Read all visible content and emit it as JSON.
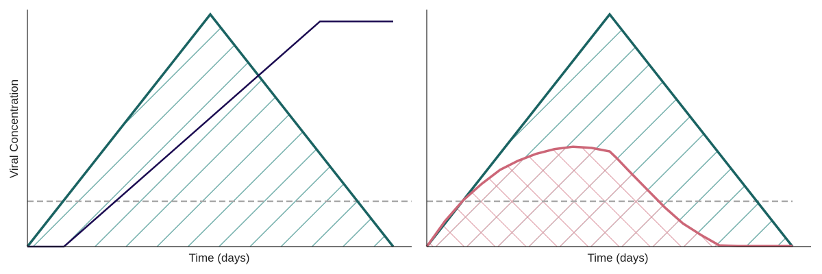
{
  "colors": {
    "triangle": "#1a6362",
    "triangle_hatch": "#6aaaa6",
    "line": "#1a0a50",
    "curve": "#cc6677",
    "curve_hatch": "#dc95a0",
    "threshold": "#aaaaaa",
    "axis": "#222222"
  },
  "chart_data": [
    {
      "type": "line",
      "xlabel": "Time (days)",
      "ylabel": "Viral Concentration",
      "xlim": [
        0,
        1
      ],
      "ylim": [
        0,
        1
      ],
      "grid": false,
      "ticks": false,
      "series": [
        {
          "role": "triangle",
          "hatched": true,
          "x": [
            0,
            0.5,
            1.0
          ],
          "y": [
            0,
            1.0,
            0
          ]
        },
        {
          "role": "line",
          "x": [
            0,
            0.1,
            0.8,
            1.0
          ],
          "y": [
            0,
            0,
            0.97,
            0.97
          ]
        },
        {
          "role": "threshold",
          "dashed": true,
          "x": [
            0,
            1.05
          ],
          "y": [
            0.195,
            0.195
          ]
        }
      ]
    },
    {
      "type": "line",
      "xlabel": "Time (days)",
      "ylabel": "",
      "xlim": [
        0,
        1
      ],
      "ylim": [
        0,
        1
      ],
      "grid": false,
      "ticks": false,
      "series": [
        {
          "role": "triangle",
          "hatched": true,
          "x": [
            0,
            0.5,
            1.0
          ],
          "y": [
            0,
            1.0,
            0
          ]
        },
        {
          "role": "curve",
          "hatched": true,
          "x": [
            0,
            0.05,
            0.1,
            0.15,
            0.2,
            0.25,
            0.3,
            0.35,
            0.4,
            0.45,
            0.5,
            0.52,
            0.55,
            0.6,
            0.65,
            0.7,
            0.75,
            0.8,
            0.85,
            0.9,
            0.95,
            1.0
          ],
          "y": [
            0,
            0.11,
            0.2,
            0.27,
            0.33,
            0.37,
            0.4,
            0.42,
            0.43,
            0.425,
            0.41,
            0.38,
            0.33,
            0.25,
            0.17,
            0.1,
            0.05,
            0.005,
            0.002,
            0.002,
            0.002,
            0.002
          ]
        },
        {
          "role": "threshold",
          "dashed": true,
          "x": [
            0,
            1.0
          ],
          "y": [
            0.195,
            0.195
          ]
        }
      ]
    }
  ]
}
